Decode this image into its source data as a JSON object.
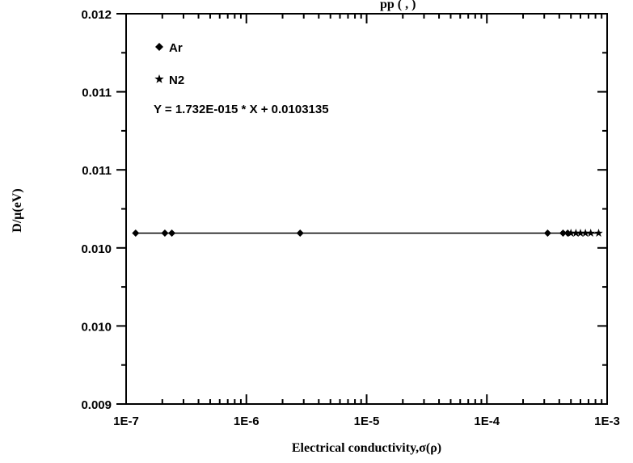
{
  "chart_data": {
    "type": "scatter",
    "title_fragment": "pp ( , )",
    "xlabel": "Electrical conductivity,σ(ρ)",
    "ylabel": "D/μ(eV)",
    "x_scale": "log",
    "xlim": [
      1e-07,
      0.001
    ],
    "ylim": [
      0.009,
      0.012
    ],
    "x_tick_labels": [
      "1E-7",
      "1E-6",
      "1E-5",
      "1E-4",
      "1E-3"
    ],
    "x_tick_values": [
      1e-07,
      1e-06,
      1e-05,
      0.0001,
      0.001
    ],
    "y_tick_labels": [
      "0.009",
      "0.010",
      "0.010",
      "0.011",
      "0.011",
      "0.012"
    ],
    "y_tick_values": [
      0.009,
      0.0096,
      0.0102,
      0.0108,
      0.0114,
      0.012
    ],
    "legend_placement": "top-left",
    "series": [
      {
        "name": "Ar",
        "marker": "diamond",
        "x": [
          1.2e-07,
          2.1e-07,
          2.4e-07,
          2.8e-06,
          0.00032,
          0.00043,
          0.00047
        ],
        "y": [
          0.0103135,
          0.0103135,
          0.0103135,
          0.0103135,
          0.0103135,
          0.0103135,
          0.0103135
        ]
      },
      {
        "name": "N2",
        "marker": "star",
        "x": [
          0.0005,
          0.00055,
          0.0006,
          0.00066,
          0.00073,
          0.00085
        ],
        "y": [
          0.0103135,
          0.0103135,
          0.0103135,
          0.0103135,
          0.0103135,
          0.0103135
        ]
      }
    ],
    "fit": {
      "equation": "Y = 1.732E-015 * X + 0.0103135",
      "slope": 1.732e-15,
      "intercept": 0.0103135,
      "x_range": [
        1.2e-07,
        0.00085
      ]
    },
    "colors": {
      "axes": "#000000",
      "markers": "#000000",
      "fit_line": "#000000"
    }
  }
}
